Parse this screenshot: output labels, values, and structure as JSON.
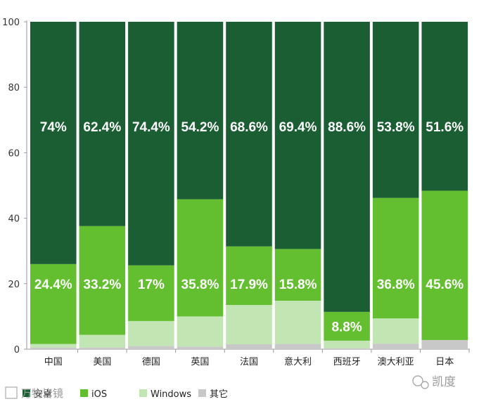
{
  "chart_data": {
    "type": "bar",
    "stacked": true,
    "title": "",
    "xlabel": "",
    "ylabel": "",
    "ylim": [
      0,
      100
    ],
    "yticks": [
      0,
      20,
      40,
      60,
      80,
      100
    ],
    "grid": false,
    "legend_position": "bottom-left",
    "categories": [
      "中国",
      "美国",
      "德国",
      "英国",
      "法国",
      "意大利",
      "西班牙",
      "澳大利亚",
      "日本"
    ],
    "series": [
      {
        "name": "其它",
        "color": "#c8c8c8",
        "values": [
          0.5,
          0.5,
          1.0,
          0.8,
          1.5,
          1.6,
          0.3,
          1.7,
          2.8
        ],
        "labels": [
          "",
          "",
          "",
          "",
          "",
          "",
          "",
          "",
          ""
        ]
      },
      {
        "name": "Windows",
        "color": "#c2e6b3",
        "values": [
          1.1,
          3.9,
          7.6,
          9.2,
          12.0,
          13.2,
          2.3,
          7.7,
          0.0
        ],
        "labels": [
          "",
          "",
          "",
          "",
          "",
          "",
          "",
          "",
          ""
        ]
      },
      {
        "name": "iOS",
        "color": "#63bf2f",
        "values": [
          24.4,
          33.2,
          17.0,
          35.8,
          17.9,
          15.8,
          8.8,
          36.8,
          45.6
        ],
        "labels": [
          "24.4%",
          "33.2%",
          "17%",
          "35.8%",
          "17.9%",
          "15.8%",
          "8.8%",
          "36.8%",
          "45.6%"
        ]
      },
      {
        "name": "安卓",
        "color": "#1b5e34",
        "values": [
          74.0,
          62.4,
          74.4,
          54.2,
          68.6,
          69.4,
          88.6,
          53.8,
          51.6
        ],
        "labels": [
          "74%",
          "62.4%",
          "74.4%",
          "54.2%",
          "68.6%",
          "69.4%",
          "88.6%",
          "53.8%",
          "51.6%"
        ]
      }
    ],
    "legend": [
      {
        "name": "安卓",
        "color": "#1b5e34"
      },
      {
        "name": "iOS",
        "color": "#63bf2f"
      },
      {
        "name": "Windows",
        "color": "#c2e6b3"
      },
      {
        "name": "其它",
        "color": "#c8c8c8"
      }
    ]
  },
  "watermarks": {
    "left": "万物皆镜",
    "right": "凯度"
  }
}
